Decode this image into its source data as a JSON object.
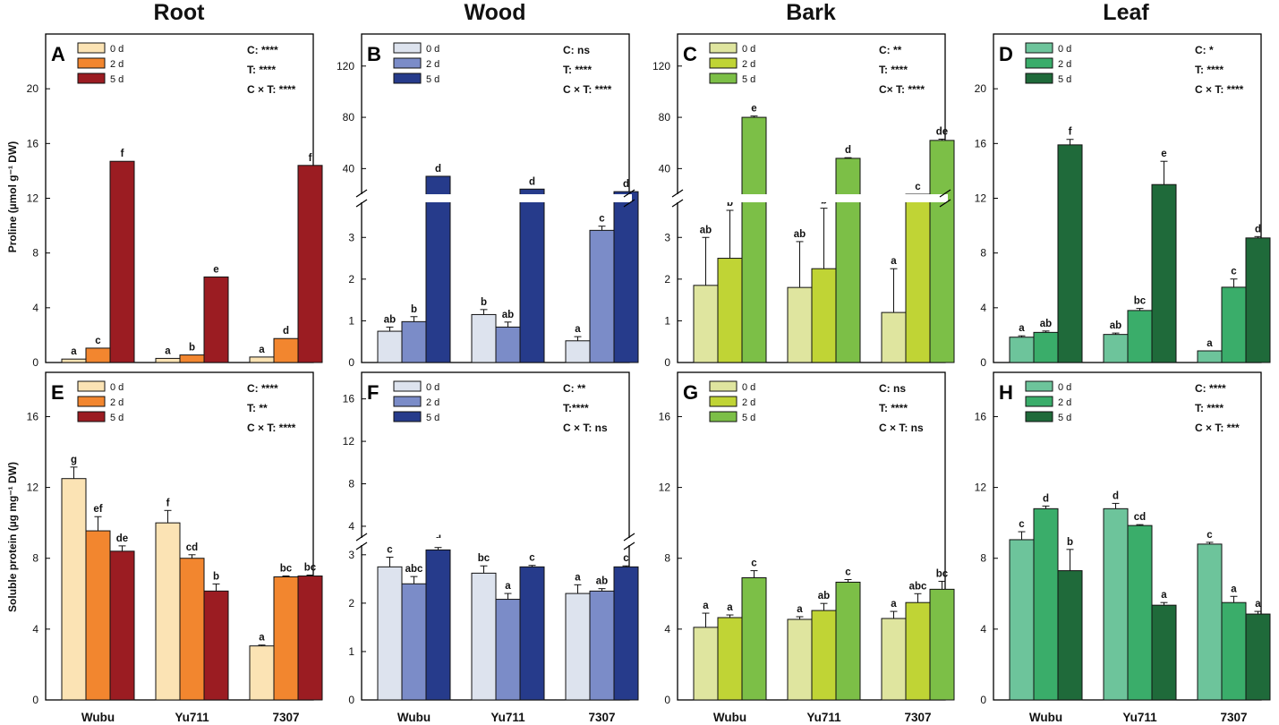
{
  "column_titles": [
    "Root",
    "Wood",
    "Bark",
    "Leaf"
  ],
  "genotypes": [
    "Wubu",
    "Yu711",
    "7307"
  ],
  "legend_labels": [
    "0 d",
    "2 d",
    "5 d"
  ],
  "y_axis_labels": {
    "proline": "Proline (µmol g⁻¹ DW)",
    "protein": "Soluble protein (µg mg⁻¹ DW)"
  },
  "colors": {
    "Root": [
      "#fbe3b4",
      "#f2862f",
      "#9b1c22"
    ],
    "Wood": [
      "#dde3ee",
      "#7b8cc8",
      "#263b8b"
    ],
    "Bark": [
      "#dfe59f",
      "#c0d435",
      "#7cbf47"
    ],
    "Leaf": [
      "#6dc49b",
      "#3aad6a",
      "#1f6a3a"
    ]
  },
  "chart_data": [
    {
      "panel": "A",
      "tissue": "Root",
      "metric": "Proline",
      "type": "bar",
      "categories": [
        "Wubu",
        "Yu711",
        "7307"
      ],
      "ylim": [
        0,
        24
      ],
      "yticks": [
        0,
        4,
        8,
        12,
        16,
        20
      ],
      "series": [
        {
          "name": "0 d",
          "values": [
            0.25,
            0.3,
            0.4
          ],
          "errors": [
            0,
            0,
            0
          ],
          "letters": [
            "a",
            "a",
            "a"
          ]
        },
        {
          "name": "2 d",
          "values": [
            1.05,
            0.55,
            1.75
          ],
          "errors": [
            0,
            0,
            0
          ],
          "letters": [
            "c",
            "b",
            "d"
          ]
        },
        {
          "name": "5 d",
          "values": [
            14.7,
            6.25,
            14.4
          ],
          "errors": [
            0,
            0,
            0
          ],
          "letters": [
            "f",
            "e",
            "f"
          ]
        }
      ],
      "stats": [
        "C: ****",
        "T: ****",
        "C × T: ****"
      ]
    },
    {
      "panel": "B",
      "tissue": "Wood",
      "metric": "Proline",
      "type": "bar",
      "categories": [
        "Wubu",
        "Yu711",
        "7307"
      ],
      "broken_axis": {
        "lower": [
          0,
          3.8
        ],
        "upper": [
          20,
          145
        ]
      },
      "yticks_lower": [
        0,
        1,
        2,
        3
      ],
      "yticks_upper": [
        40,
        80,
        120
      ],
      "series": [
        {
          "name": "0 d",
          "values": [
            0.75,
            1.15,
            0.52
          ],
          "errors": [
            0.1,
            0.12,
            0.1
          ],
          "letters": [
            "ab",
            "b",
            "a"
          ]
        },
        {
          "name": "2 d",
          "values": [
            0.98,
            0.85,
            3.17
          ],
          "errors": [
            0.12,
            0.12,
            0.1
          ],
          "letters": [
            "b",
            "ab",
            "c"
          ]
        },
        {
          "name": "5 d",
          "values": [
            34,
            24,
            22
          ],
          "errors": [
            0,
            0,
            0
          ],
          "letters": [
            "d",
            "d",
            "d"
          ]
        }
      ],
      "stats": [
        "C: ns",
        "T: ****",
        "C × T: ****"
      ]
    },
    {
      "panel": "C",
      "tissue": "Bark",
      "metric": "Proline",
      "type": "bar",
      "categories": [
        "Wubu",
        "Yu711",
        "7307"
      ],
      "broken_axis": {
        "lower": [
          0,
          3.8
        ],
        "upper": [
          20,
          145
        ]
      },
      "yticks_lower": [
        0,
        1,
        2,
        3
      ],
      "yticks_upper": [
        40,
        80,
        120
      ],
      "series": [
        {
          "name": "0 d",
          "values": [
            1.85,
            1.8,
            1.2
          ],
          "errors": [
            1.15,
            1.1,
            1.05
          ],
          "letters": [
            "ab",
            "ab",
            "a"
          ]
        },
        {
          "name": "2 d",
          "values": [
            2.5,
            2.25,
            13
          ],
          "errors": [
            1.15,
            1.45,
            0.5
          ],
          "letters": [
            "b",
            "b",
            "c"
          ]
        },
        {
          "name": "5 d",
          "values": [
            80,
            48,
            62
          ],
          "errors": [
            1,
            0.5,
            1
          ],
          "letters": [
            "e",
            "d",
            "de"
          ]
        }
      ],
      "stats": [
        "C: **",
        "T: ****",
        "C× T: ****"
      ]
    },
    {
      "panel": "D",
      "tissue": "Leaf",
      "metric": "Proline",
      "type": "bar",
      "categories": [
        "Wubu",
        "Yu711",
        "7307"
      ],
      "ylim": [
        0,
        24
      ],
      "yticks": [
        0,
        4,
        8,
        12,
        16,
        20
      ],
      "series": [
        {
          "name": "0 d",
          "values": [
            1.85,
            2.05,
            0.85
          ],
          "errors": [
            0.1,
            0.1,
            0
          ],
          "letters": [
            "a",
            "ab",
            "a"
          ]
        },
        {
          "name": "2 d",
          "values": [
            2.2,
            3.8,
            5.5
          ],
          "errors": [
            0.1,
            0.15,
            0.6
          ],
          "letters": [
            "ab",
            "bc",
            "c"
          ]
        },
        {
          "name": "5 d",
          "values": [
            15.9,
            13,
            9.1
          ],
          "errors": [
            0.4,
            1.7,
            0.1
          ],
          "letters": [
            "f",
            "e",
            "d"
          ]
        }
      ],
      "stats": [
        "C: *",
        "T: ****",
        "C × T: ****"
      ]
    },
    {
      "panel": "E",
      "tissue": "Root",
      "metric": "Soluble protein",
      "type": "bar",
      "categories": [
        "Wubu",
        "Yu711",
        "7307"
      ],
      "ylim": [
        0,
        18.5
      ],
      "yticks": [
        0,
        4,
        8,
        12,
        16
      ],
      "series": [
        {
          "name": "0 d",
          "values": [
            12.5,
            10,
            3.05
          ],
          "errors": [
            0.65,
            0.7,
            0.05
          ],
          "letters": [
            "g",
            "f",
            "a"
          ]
        },
        {
          "name": "2 d",
          "values": [
            9.55,
            8,
            6.95
          ],
          "errors": [
            0.8,
            0.2,
            0.05
          ],
          "letters": [
            "ef",
            "cd",
            "bc"
          ]
        },
        {
          "name": "5 d",
          "values": [
            8.4,
            6.15,
            7
          ],
          "errors": [
            0.3,
            0.4,
            0.05
          ],
          "letters": [
            "de",
            "b",
            "bc"
          ]
        }
      ],
      "stats": [
        "C: ****",
        "T: **",
        "C × T: ****"
      ]
    },
    {
      "panel": "F",
      "tissue": "Wood",
      "metric": "Soluble protein",
      "type": "bar",
      "categories": [
        "Wubu",
        "Yu711",
        "7307"
      ],
      "broken_axis": {
        "lower": [
          0,
          3.2
        ],
        "upper": [
          2.9,
          18.5
        ]
      },
      "yticks_lower": [
        0,
        1,
        2,
        3
      ],
      "yticks_upper": [
        4,
        8,
        12,
        16
      ],
      "series": [
        {
          "name": "0 d",
          "values": [
            2.75,
            2.62,
            2.2
          ],
          "errors": [
            0.2,
            0.15,
            0.18
          ],
          "letters": [
            "c",
            "bc",
            "a"
          ]
        },
        {
          "name": "2 d",
          "values": [
            2.4,
            2.08,
            2.25
          ],
          "errors": [
            0.15,
            0.12,
            0.05
          ],
          "letters": [
            "abc",
            "a",
            "ab"
          ]
        },
        {
          "name": "5 d",
          "values": [
            3.1,
            2.75,
            2.75
          ],
          "errors": [
            0.05,
            0.03,
            0.02
          ],
          "letters": [
            "d",
            "c",
            "c"
          ]
        }
      ],
      "stats": [
        "C: **",
        "T:****",
        "C × T: ns"
      ]
    },
    {
      "panel": "G",
      "tissue": "Bark",
      "metric": "Soluble protein",
      "type": "bar",
      "categories": [
        "Wubu",
        "Yu711",
        "7307"
      ],
      "ylim": [
        0,
        18.5
      ],
      "yticks": [
        0,
        4,
        8,
        12,
        16
      ],
      "series": [
        {
          "name": "0 d",
          "values": [
            4.1,
            4.55,
            4.6
          ],
          "errors": [
            0.8,
            0.15,
            0.4
          ],
          "letters": [
            "a",
            "a",
            "a"
          ]
        },
        {
          "name": "2 d",
          "values": [
            4.65,
            5.05,
            5.5
          ],
          "errors": [
            0.15,
            0.4,
            0.5
          ],
          "letters": [
            "a",
            "ab",
            "abc"
          ]
        },
        {
          "name": "5 d",
          "values": [
            6.9,
            6.65,
            6.25
          ],
          "errors": [
            0.4,
            0.15,
            0.45
          ],
          "letters": [
            "c",
            "c",
            "bc"
          ]
        }
      ],
      "stats": [
        "C: ns",
        "T: ****",
        "C × T: ns"
      ]
    },
    {
      "panel": "H",
      "tissue": "Leaf",
      "metric": "Soluble protein",
      "type": "bar",
      "categories": [
        "Wubu",
        "Yu711",
        "7307"
      ],
      "ylim": [
        0,
        18.5
      ],
      "yticks": [
        0,
        4,
        8,
        12,
        16
      ],
      "series": [
        {
          "name": "0 d",
          "values": [
            9.05,
            10.8,
            8.8
          ],
          "errors": [
            0.45,
            0.3,
            0.1
          ],
          "letters": [
            "c",
            "d",
            "c"
          ]
        },
        {
          "name": "2 d",
          "values": [
            10.8,
            9.85,
            5.5
          ],
          "errors": [
            0.15,
            0.05,
            0.35
          ],
          "letters": [
            "d",
            "cd",
            "a"
          ]
        },
        {
          "name": "5 d",
          "values": [
            7.3,
            5.35,
            4.85
          ],
          "errors": [
            1.2,
            0.15,
            0.15
          ],
          "letters": [
            "b",
            "a",
            "a"
          ]
        }
      ],
      "stats": [
        "C: ****",
        "T: ****",
        "C × T: ***"
      ]
    }
  ]
}
